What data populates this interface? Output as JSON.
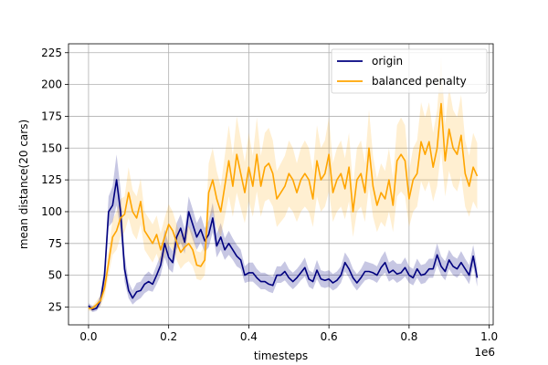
{
  "chart_data": {
    "type": "line",
    "xlabel": "timesteps",
    "ylabel": "mean distance(20 cars)",
    "x_offset_label": "1e6",
    "xlim": [
      -0.05,
      1.01
    ],
    "ylim": [
      11,
      232
    ],
    "x_ticks": [
      0.0,
      0.2,
      0.4,
      0.6,
      0.8,
      1.0
    ],
    "x_tick_labels": [
      "0.0",
      "0.2",
      "0.4",
      "0.6",
      "0.8",
      "1.0"
    ],
    "y_ticks": [
      25,
      50,
      75,
      100,
      125,
      150,
      175,
      200,
      225
    ],
    "y_tick_labels": [
      "25",
      "50",
      "75",
      "100",
      "125",
      "150",
      "175",
      "200",
      "225"
    ],
    "grid": true,
    "legend_position": "top-right",
    "series": [
      {
        "name": "origin",
        "color": "#00007f",
        "band_color": "#00007f",
        "x": [
          0.0,
          0.01,
          0.02,
          0.03,
          0.04,
          0.05,
          0.06,
          0.07,
          0.08,
          0.09,
          0.1,
          0.11,
          0.12,
          0.13,
          0.14,
          0.15,
          0.16,
          0.17,
          0.18,
          0.19,
          0.2,
          0.21,
          0.22,
          0.23,
          0.24,
          0.25,
          0.26,
          0.27,
          0.28,
          0.29,
          0.3,
          0.31,
          0.32,
          0.33,
          0.34,
          0.35,
          0.36,
          0.37,
          0.38,
          0.39,
          0.4,
          0.41,
          0.42,
          0.43,
          0.44,
          0.45,
          0.46,
          0.47,
          0.48,
          0.49,
          0.5,
          0.51,
          0.52,
          0.53,
          0.54,
          0.55,
          0.56,
          0.57,
          0.58,
          0.59,
          0.6,
          0.61,
          0.62,
          0.63,
          0.64,
          0.65,
          0.66,
          0.67,
          0.68,
          0.69,
          0.7,
          0.71,
          0.72,
          0.73,
          0.74,
          0.75,
          0.76,
          0.77,
          0.78,
          0.79,
          0.8,
          0.81,
          0.82,
          0.83,
          0.84,
          0.85,
          0.86,
          0.87,
          0.88,
          0.89,
          0.9,
          0.91,
          0.92,
          0.93,
          0.94,
          0.95,
          0.96,
          0.97
        ],
        "y": [
          26,
          23,
          24,
          30,
          50,
          100,
          105,
          125,
          100,
          55,
          38,
          32,
          37,
          38,
          43,
          45,
          43,
          50,
          58,
          75,
          64,
          60,
          80,
          87,
          76,
          100,
          90,
          80,
          86,
          77,
          82,
          95,
          73,
          80,
          70,
          75,
          70,
          65,
          62,
          50,
          52,
          52,
          48,
          45,
          45,
          43,
          42,
          50,
          50,
          53,
          48,
          45,
          48,
          52,
          56,
          47,
          45,
          54,
          47,
          46,
          47,
          44,
          46,
          50,
          60,
          55,
          48,
          44,
          48,
          53,
          53,
          52,
          50,
          56,
          60,
          52,
          54,
          51,
          52,
          56,
          50,
          48,
          55,
          50,
          51,
          55,
          55,
          66,
          57,
          53,
          62,
          57,
          55,
          60,
          55,
          50,
          65,
          48
        ],
        "band_lower": [
          24,
          21,
          22,
          26,
          42,
          88,
          92,
          105,
          85,
          45,
          32,
          27,
          30,
          32,
          36,
          38,
          37,
          43,
          50,
          64,
          55,
          52,
          70,
          76,
          67,
          88,
          78,
          70,
          76,
          68,
          72,
          84,
          64,
          70,
          62,
          66,
          62,
          57,
          55,
          44,
          45,
          45,
          42,
          39,
          39,
          37,
          36,
          44,
          44,
          46,
          42,
          39,
          42,
          46,
          49,
          41,
          39,
          47,
          41,
          40,
          41,
          38,
          40,
          44,
          53,
          48,
          42,
          38,
          42,
          46,
          47,
          46,
          44,
          49,
          52,
          45,
          47,
          44,
          46,
          49,
          44,
          42,
          48,
          43,
          44,
          48,
          48,
          58,
          50,
          46,
          55,
          50,
          48,
          52,
          48,
          43,
          57,
          41
        ],
        "band_upper": [
          28,
          26,
          27,
          35,
          58,
          112,
          120,
          145,
          118,
          66,
          45,
          38,
          44,
          45,
          50,
          53,
          50,
          58,
          66,
          86,
          74,
          69,
          91,
          98,
          86,
          112,
          102,
          91,
          97,
          87,
          93,
          107,
          83,
          91,
          79,
          85,
          79,
          74,
          70,
          57,
          60,
          60,
          55,
          52,
          52,
          50,
          49,
          57,
          57,
          61,
          55,
          52,
          55,
          59,
          64,
          54,
          52,
          62,
          54,
          53,
          54,
          51,
          53,
          57,
          68,
          63,
          55,
          51,
          55,
          61,
          60,
          59,
          57,
          64,
          69,
          60,
          62,
          59,
          59,
          64,
          57,
          55,
          63,
          58,
          59,
          63,
          63,
          75,
          65,
          61,
          70,
          65,
          63,
          69,
          63,
          58,
          74,
          56
        ]
      },
      {
        "name": "balanced penalty",
        "color": "#ffa500",
        "band_color": "#ffa500",
        "x": [
          0.0,
          0.01,
          0.02,
          0.03,
          0.04,
          0.05,
          0.06,
          0.07,
          0.08,
          0.09,
          0.1,
          0.11,
          0.12,
          0.13,
          0.14,
          0.15,
          0.16,
          0.17,
          0.18,
          0.19,
          0.2,
          0.21,
          0.22,
          0.23,
          0.24,
          0.25,
          0.26,
          0.27,
          0.28,
          0.29,
          0.3,
          0.31,
          0.32,
          0.33,
          0.34,
          0.35,
          0.36,
          0.37,
          0.38,
          0.39,
          0.4,
          0.41,
          0.42,
          0.43,
          0.44,
          0.45,
          0.46,
          0.47,
          0.48,
          0.49,
          0.5,
          0.51,
          0.52,
          0.53,
          0.54,
          0.55,
          0.56,
          0.57,
          0.58,
          0.59,
          0.6,
          0.61,
          0.62,
          0.63,
          0.64,
          0.65,
          0.66,
          0.67,
          0.68,
          0.69,
          0.7,
          0.71,
          0.72,
          0.73,
          0.74,
          0.75,
          0.76,
          0.77,
          0.78,
          0.79,
          0.8,
          0.81,
          0.82,
          0.83,
          0.84,
          0.85,
          0.86,
          0.87,
          0.88,
          0.89,
          0.9,
          0.91,
          0.92,
          0.93,
          0.94,
          0.95,
          0.96,
          0.97
        ],
        "y": [
          24,
          24,
          27,
          30,
          40,
          60,
          80,
          85,
          95,
          98,
          115,
          100,
          95,
          108,
          85,
          80,
          75,
          82,
          70,
          80,
          90,
          85,
          76,
          68,
          72,
          75,
          70,
          58,
          57,
          62,
          115,
          125,
          110,
          100,
          120,
          140,
          120,
          145,
          130,
          115,
          135,
          120,
          145,
          120,
          135,
          138,
          130,
          110,
          115,
          120,
          130,
          125,
          115,
          125,
          130,
          125,
          110,
          140,
          125,
          130,
          145,
          115,
          125,
          130,
          118,
          135,
          100,
          125,
          130,
          115,
          150,
          120,
          105,
          115,
          110,
          125,
          105,
          140,
          145,
          140,
          110,
          125,
          130,
          155,
          145,
          155,
          135,
          150,
          185,
          140,
          165,
          150,
          145,
          160,
          130,
          120,
          135,
          128
        ],
        "band_lower": [
          22,
          22,
          24,
          26,
          33,
          50,
          66,
          70,
          80,
          84,
          95,
          83,
          78,
          90,
          70,
          65,
          60,
          67,
          57,
          65,
          74,
          70,
          62,
          55,
          59,
          61,
          57,
          47,
          46,
          50,
          92,
          100,
          88,
          80,
          96,
          112,
          96,
          115,
          103,
          91,
          108,
          96,
          116,
          96,
          108,
          110,
          104,
          88,
          92,
          96,
          104,
          100,
          92,
          100,
          104,
          100,
          88,
          112,
          100,
          104,
          116,
          92,
          100,
          104,
          94,
          108,
          80,
          100,
          104,
          92,
          120,
          96,
          84,
          92,
          88,
          100,
          84,
          112,
          116,
          112,
          88,
          100,
          104,
          124,
          116,
          124,
          108,
          120,
          148,
          112,
          132,
          120,
          116,
          128,
          104,
          96,
          108,
          102
        ],
        "band_upper": [
          26,
          26,
          30,
          34,
          47,
          70,
          94,
          100,
          110,
          112,
          135,
          117,
          112,
          126,
          100,
          95,
          90,
          97,
          83,
          95,
          106,
          100,
          90,
          81,
          85,
          89,
          83,
          69,
          68,
          74,
          138,
          150,
          132,
          120,
          144,
          168,
          144,
          175,
          157,
          139,
          162,
          144,
          174,
          144,
          162,
          166,
          156,
          132,
          138,
          144,
          156,
          150,
          138,
          150,
          156,
          150,
          132,
          168,
          150,
          156,
          174,
          138,
          150,
          156,
          142,
          162,
          120,
          150,
          156,
          138,
          180,
          144,
          126,
          138,
          132,
          150,
          126,
          168,
          174,
          168,
          132,
          150,
          156,
          186,
          174,
          186,
          162,
          180,
          222,
          168,
          198,
          180,
          174,
          192,
          156,
          144,
          162,
          154
        ]
      }
    ]
  }
}
